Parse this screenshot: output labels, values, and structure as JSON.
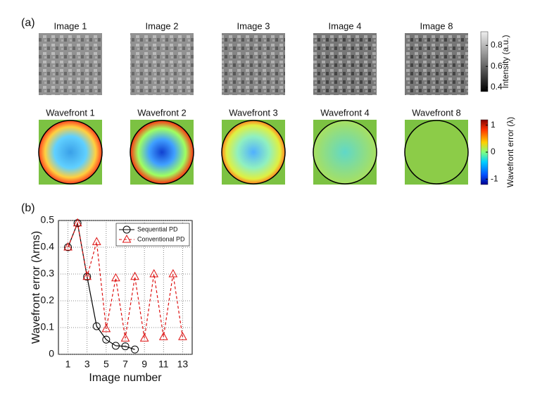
{
  "panel_a": {
    "label": "(a)",
    "images": [
      "Image 1",
      "Image 2",
      "Image 3",
      "Image 4",
      "Image 8"
    ],
    "wavefronts": [
      "Wavefront 1",
      "Wavefront 2",
      "Wavefront 3",
      "Wavefront 4",
      "Wavefront 8"
    ],
    "intensity_colorbar": {
      "label": "Intensity (a.u.)",
      "lim": [
        0.36,
        0.93
      ],
      "ticks": [
        0.8,
        0.6,
        0.4
      ]
    },
    "wavefront_colorbar": {
      "label": "Wavefront error (λ)",
      "lim": [
        -1.2,
        1.2
      ],
      "ticks": [
        1,
        0,
        -1
      ]
    }
  },
  "chart_data": {
    "type": "line",
    "label": "(b)",
    "xlabel": "Image number",
    "ylabel": "Wavefront error (λrms)",
    "xlim": [
      0,
      14
    ],
    "xticks": [
      1,
      3,
      5,
      7,
      9,
      11,
      13
    ],
    "ylim": [
      0,
      0.5
    ],
    "yticks": [
      0,
      0.1,
      0.2,
      0.3,
      0.4,
      0.5
    ],
    "grid": true,
    "legend": "upper right",
    "series": [
      {
        "name": "Sequential PD",
        "color": "#000000",
        "marker": "circle",
        "linestyle": "solid",
        "x": [
          1,
          2,
          3,
          4,
          5,
          6,
          7,
          8
        ],
        "values": [
          0.4,
          0.49,
          0.29,
          0.105,
          0.055,
          0.032,
          0.03,
          0.018
        ]
      },
      {
        "name": "Conventional PD",
        "color": "#dd1111",
        "marker": "triangle",
        "linestyle": "dashed",
        "x": [
          1,
          2,
          3,
          4,
          5,
          6,
          7,
          8,
          9,
          10,
          11,
          12,
          13
        ],
        "values": [
          0.4,
          0.49,
          0.29,
          0.42,
          0.095,
          0.285,
          0.06,
          0.29,
          0.06,
          0.3,
          0.065,
          0.3,
          0.065
        ]
      }
    ]
  }
}
